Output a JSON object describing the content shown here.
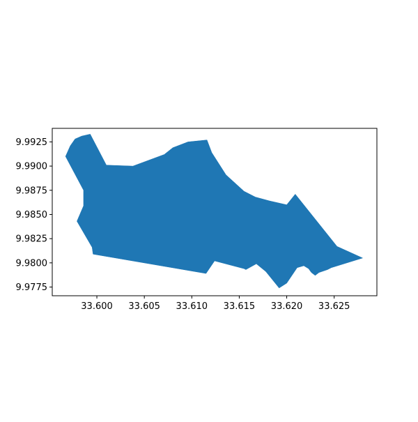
{
  "chart_data": {
    "type": "map",
    "geometry": "polygon",
    "fill_color": "#1f77b4",
    "frame_color": "#000000",
    "background": "#ffffff",
    "grid": false,
    "xlim": [
      33.5953,
      33.6295
    ],
    "ylim": [
      9.9766,
      9.9939
    ],
    "x_ticks": [
      {
        "value": 33.6,
        "label": "33.600"
      },
      {
        "value": 33.605,
        "label": "33.605"
      },
      {
        "value": 33.61,
        "label": "33.610"
      },
      {
        "value": 33.615,
        "label": "33.615"
      },
      {
        "value": 33.62,
        "label": "33.620"
      },
      {
        "value": 33.625,
        "label": "33.625"
      }
    ],
    "y_ticks": [
      {
        "value": 9.9925,
        "label": "9.9925"
      },
      {
        "value": 9.99,
        "label": "9.9900"
      },
      {
        "value": 9.9875,
        "label": "9.9875"
      },
      {
        "value": 9.985,
        "label": "9.9850"
      },
      {
        "value": 9.9825,
        "label": "9.9825"
      },
      {
        "value": 9.98,
        "label": "9.9800"
      },
      {
        "value": 9.9775,
        "label": "9.9775"
      }
    ],
    "polygon": [
      [
        33.5967,
        9.991
      ],
      [
        33.5972,
        9.9921
      ],
      [
        33.5977,
        9.9928
      ],
      [
        33.5984,
        9.9931
      ],
      [
        33.5993,
        9.9933
      ],
      [
        33.601,
        9.9901
      ],
      [
        33.6038,
        9.99
      ],
      [
        33.6071,
        9.9912
      ],
      [
        33.608,
        9.9919
      ],
      [
        33.6096,
        9.9925
      ],
      [
        33.6116,
        9.9927
      ],
      [
        33.6121,
        9.9914
      ],
      [
        33.6136,
        9.9891
      ],
      [
        33.6155,
        9.9874
      ],
      [
        33.6167,
        9.9868
      ],
      [
        33.6182,
        9.9864
      ],
      [
        33.62,
        9.986
      ],
      [
        33.6209,
        9.9871
      ],
      [
        33.6253,
        9.9817
      ],
      [
        33.628,
        9.9805
      ],
      [
        33.6247,
        9.9795
      ],
      [
        33.6243,
        9.9793
      ],
      [
        33.6234,
        9.979
      ],
      [
        33.623,
        9.9787
      ],
      [
        33.6226,
        9.979
      ],
      [
        33.6223,
        9.9794
      ],
      [
        33.6218,
        9.9797
      ],
      [
        33.6211,
        9.9795
      ],
      [
        33.62,
        9.9779
      ],
      [
        33.6192,
        9.9774
      ],
      [
        33.6178,
        9.9791
      ],
      [
        33.6168,
        9.9799
      ],
      [
        33.6157,
        9.9793
      ],
      [
        33.6155,
        9.9794
      ],
      [
        33.6124,
        9.9802
      ],
      [
        33.6115,
        9.9789
      ],
      [
        33.5996,
        9.9809
      ],
      [
        33.5995,
        9.9816
      ],
      [
        33.5979,
        9.9843
      ],
      [
        33.5986,
        9.9859
      ],
      [
        33.5986,
        9.9875
      ],
      [
        33.5967,
        9.991
      ]
    ]
  }
}
